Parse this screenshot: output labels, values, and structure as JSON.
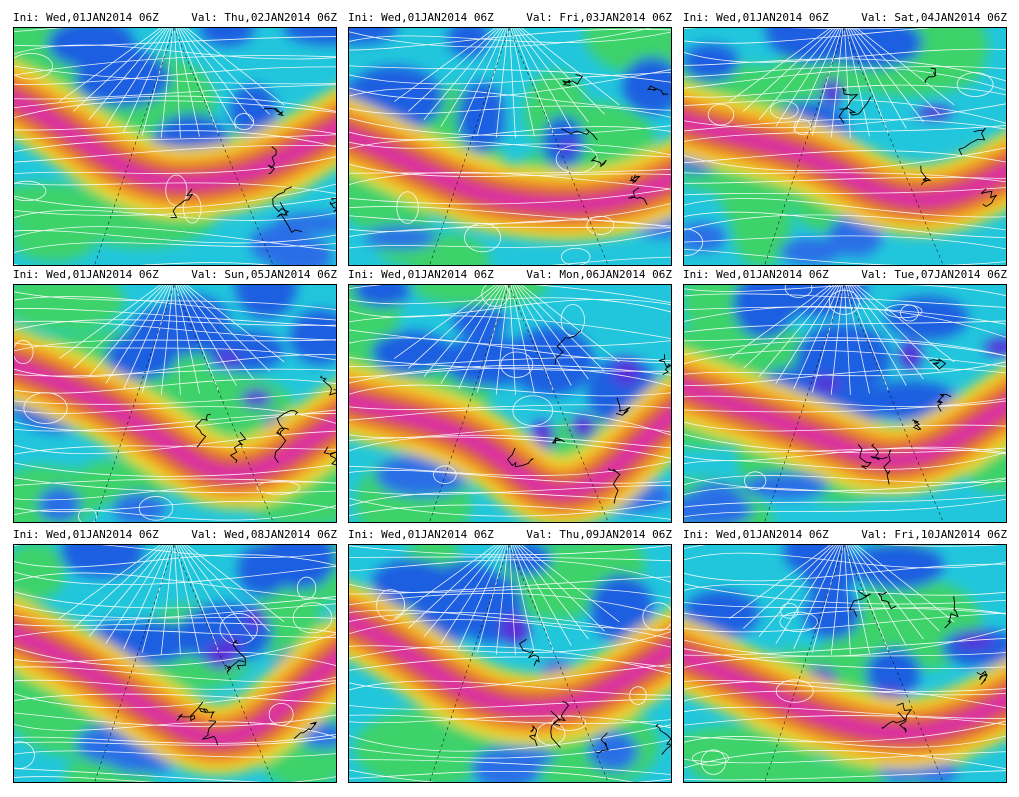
{
  "panels": [
    {
      "ini": "Ini: Wed,01JAN2014 06Z",
      "val": "Val: Thu,02JAN2014 06Z"
    },
    {
      "ini": "Ini: Wed,01JAN2014 06Z",
      "val": "Val: Fri,03JAN2014 06Z"
    },
    {
      "ini": "Ini: Wed,01JAN2014 06Z",
      "val": "Val: Sat,04JAN2014 06Z"
    },
    {
      "ini": "Ini: Wed,01JAN2014 06Z",
      "val": "Val: Sun,05JAN2014 06Z"
    },
    {
      "ini": "Ini: Wed,01JAN2014 06Z",
      "val": "Val: Mon,06JAN2014 06Z"
    },
    {
      "ini": "Ini: Wed,01JAN2014 06Z",
      "val": "Val: Tue,07JAN2014 06Z"
    },
    {
      "ini": "Ini: Wed,01JAN2014 06Z",
      "val": "Val: Wed,08JAN2014 06Z"
    },
    {
      "ini": "Ini: Wed,01JAN2014 06Z",
      "val": "Val: Thu,09JAN2014 06Z"
    },
    {
      "ini": "Ini: Wed,01JAN2014 06Z",
      "val": "Val: Fri,10JAN2014 06Z"
    }
  ]
}
